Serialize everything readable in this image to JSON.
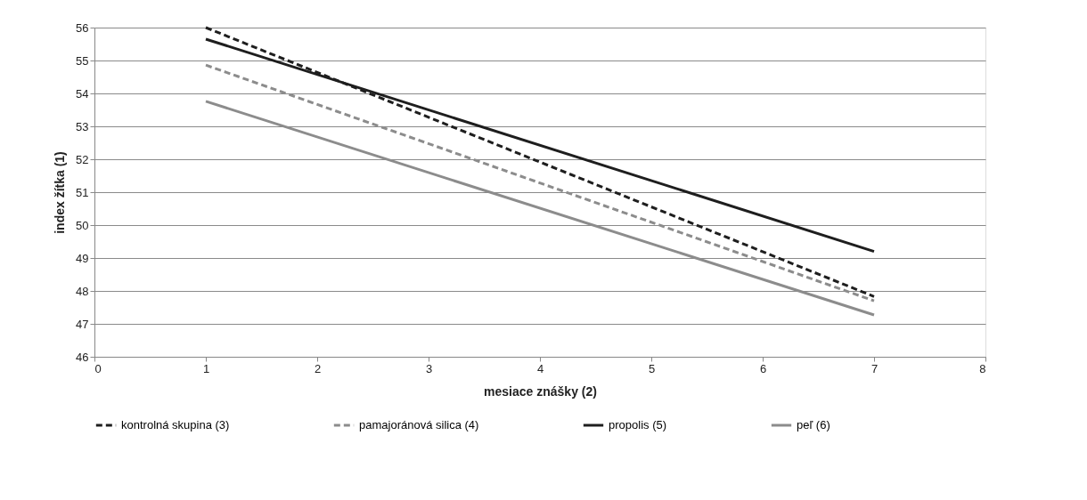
{
  "chart_data": {
    "type": "line",
    "xlabel": "mesiace znášky (2)",
    "ylabel": "index žítka (1)",
    "x": [
      1,
      7
    ],
    "xlim": [
      0,
      8
    ],
    "xticks": [
      0,
      1,
      2,
      3,
      4,
      5,
      6,
      7,
      8
    ],
    "ylim": [
      46,
      56
    ],
    "yticks": [
      46,
      47,
      48,
      49,
      50,
      51,
      52,
      53,
      54,
      55,
      56
    ],
    "grid": "y",
    "legend": "bottom",
    "marker": "none",
    "series": [
      {
        "name": "kontrolná skupina (3)",
        "color": "#1e1e1e",
        "line_style": "dashed",
        "values": [
          56.0,
          47.83
        ]
      },
      {
        "name": "pamajoránová silica (4)",
        "color": "#8c8c8c",
        "line_style": "dashed",
        "values": [
          54.86,
          47.7
        ]
      },
      {
        "name": "propolis (5)",
        "color": "#1e1e1e",
        "line_style": "solid",
        "values": [
          55.65,
          49.2
        ]
      },
      {
        "name": "peľ (6)",
        "color": "#8c8c8c",
        "line_style": "solid",
        "values": [
          53.76,
          47.27
        ]
      }
    ]
  }
}
